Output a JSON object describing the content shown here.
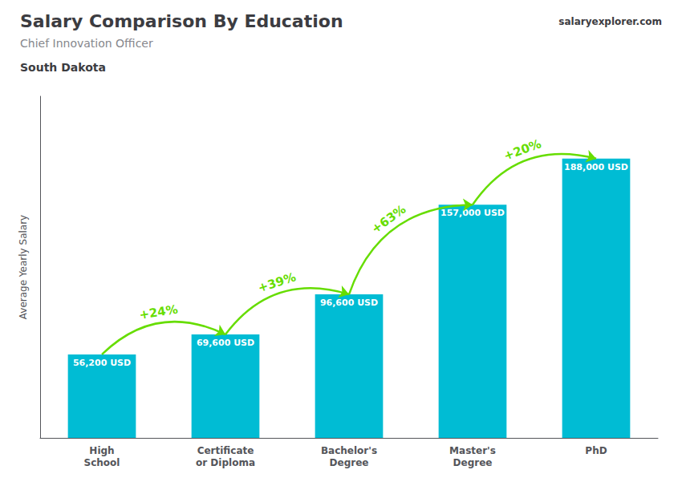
{
  "chart_data": {
    "type": "bar",
    "title": "Salary Comparison By Education",
    "subtitle": "Chief Innovation Officer",
    "ylabel": "Average Yearly Salary",
    "categories": [
      "High\nSchool",
      "Certificate\nor Diploma",
      "Bachelor's\nDegree",
      "Master's\nDegree",
      "PhD"
    ],
    "values": [
      56200,
      69600,
      96600,
      157000,
      188000
    ],
    "value_labels": [
      "56,200 USD",
      "69,600 USD",
      "96,600 USD",
      "157,000 USD",
      "188,000 USD"
    ],
    "color": "#00bcd4",
    "ylim": [
      0,
      230000
    ],
    "grid": false,
    "tick_labels": "x",
    "data_labels": true,
    "annotations": [
      {
        "text": "South Dakota"
      },
      {
        "text": "salaryexplorer.com"
      },
      {
        "text": "+24%",
        "from": "High\nSchool",
        "to": "Certificate\nor Diploma",
        "color": "#66dd00"
      },
      {
        "text": "+39%",
        "from": "Certificate\nor Diploma",
        "to": "Bachelor's\nDegree",
        "color": "#66dd00"
      },
      {
        "text": "+63%",
        "from": "Bachelor's\nDegree",
        "to": "Master's\nDegree",
        "color": "#66dd00"
      },
      {
        "text": "+20%",
        "from": "Master's\nDegree",
        "to": "PhD",
        "color": "#66dd00"
      }
    ]
  }
}
